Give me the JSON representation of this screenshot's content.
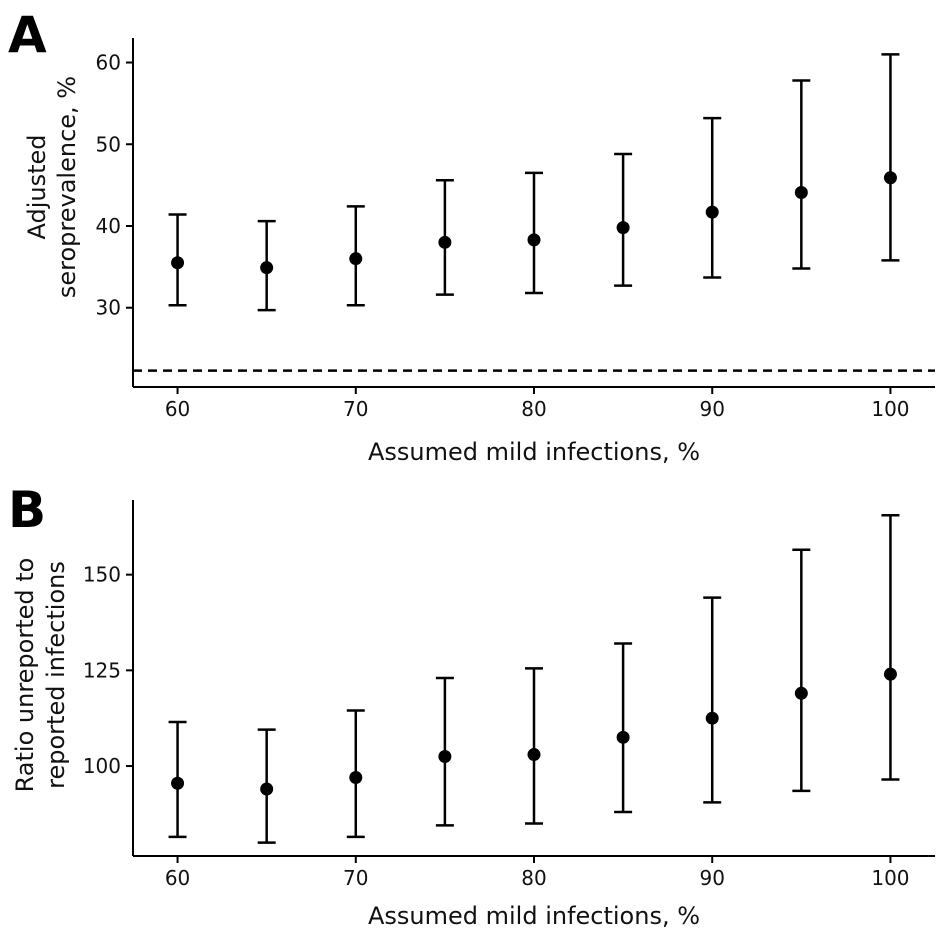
{
  "chart_data": [
    {
      "type": "scatter",
      "panel_label": "A",
      "xlabel": "Assumed mild infections, %",
      "ylabel_lines": [
        "Adjusted",
        "seroprevalence, %"
      ],
      "x": [
        60,
        65,
        70,
        75,
        80,
        85,
        90,
        95,
        100
      ],
      "y": [
        35.5,
        34.9,
        36.0,
        38.0,
        38.3,
        39.8,
        41.7,
        44.1,
        45.9
      ],
      "y_lower": [
        30.3,
        29.7,
        30.3,
        31.6,
        31.8,
        32.7,
        33.7,
        34.8,
        35.8
      ],
      "y_upper": [
        41.4,
        40.6,
        42.4,
        45.6,
        46.5,
        48.8,
        53.2,
        57.8,
        61.0
      ],
      "reference_line": {
        "y": 22.3,
        "style": "dashed"
      },
      "xticks": [
        60,
        70,
        80,
        90,
        100
      ],
      "yticks": [
        30,
        40,
        50,
        60
      ],
      "xlim": [
        57.5,
        102.5
      ],
      "ylim": [
        20.3,
        63.0
      ],
      "grid": false
    },
    {
      "type": "scatter",
      "panel_label": "B",
      "xlabel": "Assumed mild infections, %",
      "ylabel_lines": [
        "Ratio unreported to",
        "reported infections"
      ],
      "x": [
        60,
        65,
        70,
        75,
        80,
        85,
        90,
        95,
        100
      ],
      "y": [
        95.5,
        94.0,
        97.0,
        102.5,
        103.0,
        107.5,
        112.5,
        119.0,
        124.0
      ],
      "y_lower": [
        81.5,
        80.0,
        81.5,
        84.5,
        85.0,
        88.0,
        90.5,
        93.5,
        96.5
      ],
      "y_upper": [
        111.5,
        109.5,
        114.5,
        123.0,
        125.5,
        132.0,
        144.0,
        156.5,
        165.5
      ],
      "xticks": [
        60,
        70,
        80,
        90,
        100
      ],
      "yticks": [
        100,
        125,
        150
      ],
      "xlim": [
        57.5,
        102.5
      ],
      "ylim": [
        76.5,
        169.5
      ],
      "grid": false
    }
  ]
}
